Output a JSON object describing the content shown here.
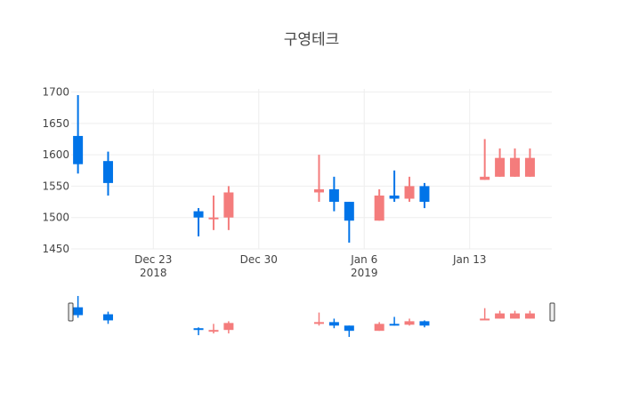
{
  "chart_data": {
    "type": "candlestick",
    "title": "구영테크",
    "xlabel": "",
    "ylabel": "",
    "ylim": [
      1450,
      1705
    ],
    "xlim": [
      "2018-12-18",
      "2019-01-18"
    ],
    "y_ticks": [
      1450,
      1500,
      1550,
      1600,
      1650,
      1700
    ],
    "x_ticks": [
      {
        "date": "2018-12-23",
        "label": "Dec 23",
        "sublabel": "2018"
      },
      {
        "date": "2018-12-30",
        "label": "Dec 30",
        "sublabel": ""
      },
      {
        "date": "2019-01-06",
        "label": "Jan 6",
        "sublabel": "2019"
      },
      {
        "date": "2019-01-13",
        "label": "Jan 13",
        "sublabel": ""
      }
    ],
    "grid": true,
    "rangeslider": true,
    "increasing_color": "#f47c7c",
    "decreasing_color": "#0074e8",
    "candles": [
      {
        "date": "2018-12-18",
        "open": 1630,
        "high": 1695,
        "low": 1570,
        "close": 1585
      },
      {
        "date": "2018-12-20",
        "open": 1590,
        "high": 1605,
        "low": 1535,
        "close": 1555
      },
      {
        "date": "2018-12-26",
        "open": 1510,
        "high": 1515,
        "low": 1470,
        "close": 1500
      },
      {
        "date": "2018-12-27",
        "open": 1500,
        "high": 1535,
        "low": 1480,
        "close": 1500
      },
      {
        "date": "2018-12-28",
        "open": 1500,
        "high": 1550,
        "low": 1480,
        "close": 1540
      },
      {
        "date": "2019-01-03",
        "open": 1540,
        "high": 1600,
        "low": 1525,
        "close": 1545
      },
      {
        "date": "2019-01-04",
        "open": 1545,
        "high": 1565,
        "low": 1510,
        "close": 1525
      },
      {
        "date": "2019-01-05",
        "open": 1525,
        "high": 1525,
        "low": 1460,
        "close": 1495
      },
      {
        "date": "2019-01-07",
        "open": 1495,
        "high": 1545,
        "low": 1495,
        "close": 1535
      },
      {
        "date": "2019-01-08",
        "open": 1535,
        "high": 1575,
        "low": 1525,
        "close": 1530
      },
      {
        "date": "2019-01-09",
        "open": 1530,
        "high": 1565,
        "low": 1525,
        "close": 1550
      },
      {
        "date": "2019-01-10",
        "open": 1550,
        "high": 1555,
        "low": 1515,
        "close": 1525
      },
      {
        "date": "2019-01-14",
        "open": 1560,
        "high": 1625,
        "low": 1560,
        "close": 1565
      },
      {
        "date": "2019-01-15",
        "open": 1565,
        "high": 1610,
        "low": 1565,
        "close": 1595
      },
      {
        "date": "2019-01-16",
        "open": 1565,
        "high": 1610,
        "low": 1565,
        "close": 1595
      },
      {
        "date": "2019-01-17",
        "open": 1565,
        "high": 1610,
        "low": 1565,
        "close": 1595
      }
    ]
  }
}
